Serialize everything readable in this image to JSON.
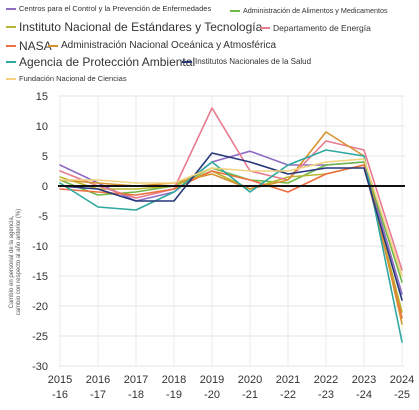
{
  "chart_data": {
    "type": "line",
    "ylabel_lines": [
      "Cambio en personal de la agencia,",
      "cambio con respecto al año anterior (%)"
    ],
    "ylim": [
      -30,
      15
    ],
    "yticks": [
      15,
      10,
      5,
      0,
      -5,
      -10,
      -15,
      -20,
      -25,
      -30
    ],
    "categories": [
      "2015-16",
      "2016-17",
      "2017-18",
      "2018-19",
      "2019-20",
      "2020-21",
      "2021-22",
      "2022-23",
      "2023-24",
      "2024-25"
    ],
    "tick_top": [
      "2015",
      "2016",
      "2017",
      "2018",
      "2019",
      "2020",
      "2021",
      "2022",
      "2023",
      "2024"
    ],
    "tick_bottom": [
      "-16",
      "-17",
      "-18",
      "-19",
      "-20",
      "-21",
      "-22",
      "-23",
      "-24",
      "-25"
    ],
    "zero_line": true,
    "series": [
      {
        "name": "Centros para el Control y la Prevención de Enfermedades",
        "color": "#8f6cc4",
        "values": [
          3.5,
          0.5,
          -2.5,
          -1.0,
          4.0,
          5.8,
          3.5,
          3.5,
          4.0,
          -18.0
        ]
      },
      {
        "name": "Administración de Alimentos y Medicamentos",
        "color": "#6fb84a",
        "values": [
          1.0,
          -1.5,
          -1.0,
          0.0,
          3.0,
          1.0,
          0.5,
          3.5,
          4.0,
          -16.0
        ]
      },
      {
        "name": "Instituto Nacional de Estándares y Tecnología",
        "color": "#b8b62f",
        "values": [
          1.5,
          -0.5,
          -0.5,
          0.0,
          2.5,
          -0.5,
          1.5,
          2.0,
          3.5,
          -21.0
        ]
      },
      {
        "name": "Departamento de Energía",
        "color": "#e77a8f",
        "values": [
          2.5,
          0.0,
          -2.0,
          -0.5,
          13.0,
          2.5,
          1.0,
          7.5,
          6.0,
          -14.0
        ]
      },
      {
        "name": "NASA",
        "color": "#ee6f41",
        "values": [
          -0.5,
          -1.0,
          -1.5,
          -0.5,
          2.5,
          1.0,
          -1.0,
          2.0,
          3.5,
          -22.0
        ]
      },
      {
        "name": "Administración Nacional Oceánica y Atmosférica",
        "color": "#d99230",
        "values": [
          1.0,
          0.5,
          0.0,
          0.5,
          2.0,
          -0.5,
          1.0,
          9.0,
          5.0,
          -23.0
        ]
      },
      {
        "name": "Agencia de Protección Ambiental",
        "color": "#2ea8a0",
        "values": [
          0.5,
          -3.5,
          -4.0,
          -1.0,
          4.0,
          -1.0,
          3.5,
          6.0,
          5.0,
          -26.0
        ]
      },
      {
        "name": "Institutos Nacionales de la Salud",
        "color": "#27377a",
        "values": [
          0.0,
          -0.5,
          -2.5,
          -2.5,
          5.5,
          4.0,
          2.0,
          3.0,
          3.0,
          -19.0
        ]
      },
      {
        "name": "Fundación Nacional de Ciencias",
        "color": "#f2d27f",
        "values": [
          1.0,
          1.0,
          0.5,
          0.5,
          3.0,
          2.5,
          2.5,
          4.0,
          4.5,
          -15.0
        ]
      }
    ]
  }
}
